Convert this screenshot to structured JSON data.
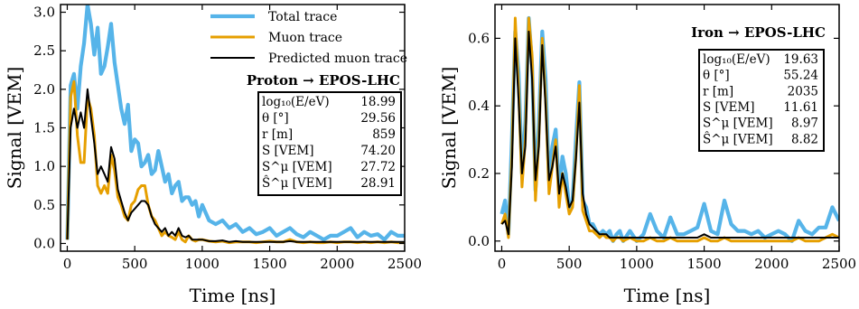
{
  "colors": {
    "total": "#56b4e9",
    "muon": "#e69f00",
    "predicted": "#000000"
  },
  "legend": [
    "Total trace",
    "Muon trace",
    "Predicted muon trace"
  ],
  "chart_data": [
    {
      "type": "line",
      "title": "Proton → EPOS-LHC",
      "xlabel": "Time [ns]",
      "ylabel": "Signal [VEM]",
      "xlim": [
        -50,
        2500
      ],
      "ylim": [
        -0.1,
        3.1
      ],
      "xticks": [
        "0",
        "500",
        "1000",
        "1500",
        "2000",
        "2500"
      ],
      "yticks": [
        "0.0",
        "0.5",
        "1.0",
        "1.5",
        "2.0",
        "2.5",
        "3.0"
      ],
      "info": [
        [
          "log₁₀(E/eV)",
          "18.99"
        ],
        [
          "θ [°]",
          "29.56"
        ],
        [
          "r [m]",
          "859"
        ],
        [
          "S [VEM]",
          "74.20"
        ],
        [
          "S^μ [VEM]",
          "27.72"
        ],
        [
          "Ŝ^μ [VEM]",
          "28.91"
        ]
      ],
      "series": [
        {
          "name": "Total trace",
          "key": "total",
          "x": [
            0,
            25,
            50,
            75,
            100,
            125,
            150,
            175,
            200,
            225,
            250,
            275,
            300,
            325,
            350,
            375,
            400,
            425,
            450,
            475,
            500,
            525,
            550,
            575,
            600,
            625,
            650,
            675,
            700,
            725,
            750,
            775,
            800,
            825,
            850,
            875,
            900,
            925,
            950,
            975,
            1000,
            1050,
            1100,
            1150,
            1200,
            1250,
            1300,
            1350,
            1400,
            1450,
            1500,
            1550,
            1600,
            1650,
            1700,
            1750,
            1800,
            1850,
            1900,
            1950,
            2000,
            2050,
            2100,
            2150,
            2200,
            2250,
            2300,
            2350,
            2400,
            2450,
            2500
          ],
          "y": [
            0.05,
            2.05,
            2.2,
            1.75,
            2.3,
            2.6,
            3.1,
            2.85,
            2.45,
            2.8,
            2.2,
            2.3,
            2.55,
            2.85,
            2.35,
            2.05,
            1.75,
            1.55,
            1.8,
            1.2,
            1.35,
            1.3,
            1.0,
            1.05,
            1.15,
            0.9,
            0.95,
            1.2,
            1.0,
            0.8,
            0.9,
            0.65,
            0.75,
            0.8,
            0.55,
            0.6,
            0.6,
            0.5,
            0.55,
            0.35,
            0.5,
            0.3,
            0.25,
            0.3,
            0.2,
            0.25,
            0.15,
            0.2,
            0.12,
            0.15,
            0.2,
            0.1,
            0.15,
            0.2,
            0.12,
            0.08,
            0.15,
            0.1,
            0.05,
            0.1,
            0.1,
            0.15,
            0.2,
            0.08,
            0.15,
            0.1,
            0.12,
            0.05,
            0.15,
            0.1,
            0.1
          ]
        },
        {
          "name": "Muon trace",
          "key": "muon",
          "x": [
            0,
            25,
            50,
            75,
            100,
            125,
            150,
            175,
            200,
            225,
            250,
            275,
            300,
            325,
            350,
            375,
            400,
            425,
            450,
            475,
            500,
            525,
            550,
            575,
            600,
            625,
            650,
            675,
            700,
            725,
            750,
            775,
            800,
            825,
            850,
            875,
            900,
            925,
            950,
            975,
            1000,
            1050,
            1100,
            1150,
            1200,
            1250,
            1300,
            1350,
            1400,
            1450,
            1500,
            1550,
            1600,
            1650,
            1700,
            1750,
            1800,
            1850,
            1900,
            1950,
            2000,
            2050,
            2100,
            2150,
            2200,
            2250,
            2300,
            2350,
            2400,
            2450,
            2500
          ],
          "y": [
            0.05,
            1.9,
            2.1,
            1.4,
            1.05,
            1.05,
            1.9,
            1.75,
            1.4,
            0.75,
            0.65,
            0.75,
            0.65,
            1.15,
            0.95,
            0.6,
            0.5,
            0.35,
            0.3,
            0.5,
            0.55,
            0.7,
            0.75,
            0.75,
            0.5,
            0.35,
            0.3,
            0.2,
            0.1,
            0.15,
            0.1,
            0.08,
            0.05,
            0.15,
            0.05,
            0.02,
            0.1,
            0.05,
            0.03,
            0.05,
            0.05,
            0.03,
            0.02,
            0.03,
            0.01,
            0.02,
            0.02,
            0.02,
            0.01,
            0.02,
            0.03,
            0.02,
            0.02,
            0.05,
            0.02,
            0.01,
            0.02,
            0.01,
            0.01,
            0.02,
            0.01,
            0.02,
            0.02,
            0.01,
            0.02,
            0.01,
            0.02,
            0.01,
            0.02,
            0.01,
            0.01
          ]
        },
        {
          "name": "Predicted muon trace",
          "key": "predicted",
          "x": [
            0,
            25,
            50,
            75,
            100,
            125,
            150,
            175,
            200,
            225,
            250,
            275,
            300,
            325,
            350,
            375,
            400,
            425,
            450,
            475,
            500,
            525,
            550,
            575,
            600,
            625,
            650,
            675,
            700,
            725,
            750,
            775,
            800,
            825,
            850,
            875,
            900,
            925,
            950,
            975,
            1000,
            1050,
            1100,
            1150,
            1200,
            1250,
            1300,
            1350,
            1400,
            1450,
            1500,
            1550,
            1600,
            1650,
            1700,
            1750,
            1800,
            1850,
            1900,
            1950,
            2000,
            2050,
            2100,
            2150,
            2200,
            2250,
            2300,
            2350,
            2400,
            2450,
            2500
          ],
          "y": [
            0.05,
            1.5,
            1.75,
            1.5,
            1.7,
            1.5,
            2.0,
            1.65,
            1.3,
            0.9,
            1.0,
            0.9,
            0.8,
            1.25,
            1.1,
            0.7,
            0.55,
            0.4,
            0.3,
            0.4,
            0.45,
            0.5,
            0.55,
            0.55,
            0.5,
            0.35,
            0.25,
            0.2,
            0.15,
            0.2,
            0.1,
            0.15,
            0.1,
            0.2,
            0.1,
            0.08,
            0.1,
            0.05,
            0.05,
            0.05,
            0.05,
            0.03,
            0.03,
            0.04,
            0.02,
            0.03,
            0.02,
            0.02,
            0.02,
            0.02,
            0.02,
            0.02,
            0.02,
            0.03,
            0.02,
            0.02,
            0.02,
            0.02,
            0.02,
            0.02,
            0.02,
            0.02,
            0.02,
            0.02,
            0.02,
            0.02,
            0.02,
            0.02,
            0.02,
            0.02,
            0.02
          ]
        }
      ]
    },
    {
      "type": "line",
      "title": "Iron → EPOS-LHC",
      "xlabel": "Time [ns]",
      "ylabel": "Signal [VEM]",
      "xlim": [
        -50,
        2500
      ],
      "ylim": [
        -0.03,
        0.7
      ],
      "xticks": [
        "0",
        "500",
        "1000",
        "1500",
        "2000",
        "2500"
      ],
      "yticks": [
        "0.0",
        "0.2",
        "0.4",
        "0.6"
      ],
      "info": [
        [
          "log₁₀(E/eV)",
          "19.63"
        ],
        [
          "θ [°]",
          "55.24"
        ],
        [
          "r [m]",
          "2035"
        ],
        [
          "S [VEM]",
          "11.61"
        ],
        [
          "S^μ [VEM]",
          "8.97"
        ],
        [
          "Ŝ^μ [VEM]",
          "8.82"
        ]
      ],
      "series": [
        {
          "name": "Total trace",
          "key": "total",
          "x": [
            0,
            25,
            50,
            75,
            100,
            125,
            150,
            175,
            200,
            225,
            250,
            275,
            300,
            325,
            350,
            375,
            400,
            425,
            450,
            475,
            500,
            525,
            550,
            575,
            600,
            625,
            650,
            675,
            700,
            725,
            750,
            775,
            800,
            825,
            850,
            875,
            900,
            950,
            1000,
            1050,
            1100,
            1150,
            1200,
            1250,
            1300,
            1350,
            1400,
            1450,
            1500,
            1550,
            1600,
            1650,
            1700,
            1750,
            1800,
            1850,
            1900,
            1950,
            2000,
            2050,
            2100,
            2150,
            2200,
            2250,
            2300,
            2350,
            2400,
            2450,
            2500
          ],
          "y": [
            0.08,
            0.12,
            0.02,
            0.3,
            0.62,
            0.5,
            0.2,
            0.35,
            0.66,
            0.52,
            0.15,
            0.35,
            0.62,
            0.48,
            0.18,
            0.28,
            0.33,
            0.15,
            0.25,
            0.2,
            0.1,
            0.12,
            0.3,
            0.47,
            0.12,
            0.1,
            0.05,
            0.05,
            0.03,
            0.02,
            0.03,
            0.02,
            0.03,
            0.0,
            0.02,
            0.03,
            0.0,
            0.03,
            0.0,
            0.02,
            0.08,
            0.03,
            0.01,
            0.07,
            0.02,
            0.02,
            0.03,
            0.04,
            0.11,
            0.03,
            0.02,
            0.12,
            0.05,
            0.03,
            0.03,
            0.02,
            0.03,
            0.01,
            0.02,
            0.03,
            0.02,
            0.0,
            0.06,
            0.03,
            0.02,
            0.04,
            0.04,
            0.1,
            0.06
          ]
        },
        {
          "name": "Muon trace",
          "key": "muon",
          "x": [
            0,
            25,
            50,
            75,
            100,
            125,
            150,
            175,
            200,
            225,
            250,
            275,
            300,
            325,
            350,
            375,
            400,
            425,
            450,
            475,
            500,
            525,
            550,
            575,
            600,
            625,
            650,
            675,
            700,
            725,
            750,
            775,
            800,
            825,
            850,
            875,
            900,
            950,
            1000,
            1050,
            1100,
            1150,
            1200,
            1250,
            1300,
            1350,
            1400,
            1450,
            1500,
            1550,
            1600,
            1650,
            1700,
            1750,
            1800,
            1850,
            1900,
            1950,
            2000,
            2050,
            2100,
            2150,
            2200,
            2250,
            2300,
            2350,
            2400,
            2450,
            2500
          ],
          "y": [
            0.05,
            0.08,
            0.01,
            0.25,
            0.66,
            0.45,
            0.16,
            0.3,
            0.66,
            0.55,
            0.12,
            0.3,
            0.6,
            0.42,
            0.14,
            0.22,
            0.3,
            0.1,
            0.2,
            0.14,
            0.08,
            0.1,
            0.25,
            0.46,
            0.09,
            0.06,
            0.03,
            0.03,
            0.02,
            0.01,
            0.02,
            0.01,
            0.01,
            0.0,
            0.01,
            0.01,
            0.0,
            0.01,
            0.0,
            0.0,
            0.01,
            0.0,
            0.0,
            0.01,
            0.0,
            0.0,
            0.0,
            0.0,
            0.01,
            0.0,
            0.0,
            0.01,
            0.0,
            0.0,
            0.0,
            0.0,
            0.0,
            0.0,
            0.0,
            0.0,
            0.0,
            0.0,
            0.01,
            0.0,
            0.0,
            0.0,
            0.01,
            0.02,
            0.01
          ]
        },
        {
          "name": "Predicted muon trace",
          "key": "predicted",
          "x": [
            0,
            25,
            50,
            75,
            100,
            125,
            150,
            175,
            200,
            225,
            250,
            275,
            300,
            325,
            350,
            375,
            400,
            425,
            450,
            475,
            500,
            525,
            550,
            575,
            600,
            625,
            650,
            675,
            700,
            725,
            750,
            775,
            800,
            825,
            850,
            875,
            900,
            950,
            1000,
            1050,
            1100,
            1150,
            1200,
            1250,
            1300,
            1350,
            1400,
            1450,
            1500,
            1550,
            1600,
            1650,
            1700,
            1750,
            1800,
            1850,
            1900,
            1950,
            2000,
            2050,
            2100,
            2150,
            2200,
            2250,
            2300,
            2350,
            2400,
            2450,
            2500
          ],
          "y": [
            0.05,
            0.06,
            0.02,
            0.22,
            0.6,
            0.42,
            0.2,
            0.28,
            0.62,
            0.48,
            0.18,
            0.28,
            0.58,
            0.4,
            0.18,
            0.22,
            0.28,
            0.14,
            0.2,
            0.16,
            0.1,
            0.12,
            0.24,
            0.41,
            0.14,
            0.08,
            0.05,
            0.04,
            0.03,
            0.02,
            0.02,
            0.02,
            0.01,
            0.01,
            0.01,
            0.01,
            0.01,
            0.01,
            0.01,
            0.01,
            0.01,
            0.01,
            0.01,
            0.01,
            0.01,
            0.01,
            0.01,
            0.01,
            0.02,
            0.01,
            0.01,
            0.01,
            0.01,
            0.01,
            0.01,
            0.01,
            0.01,
            0.01,
            0.01,
            0.01,
            0.01,
            0.01,
            0.01,
            0.01,
            0.01,
            0.01,
            0.01,
            0.01,
            0.01
          ]
        }
      ]
    }
  ]
}
